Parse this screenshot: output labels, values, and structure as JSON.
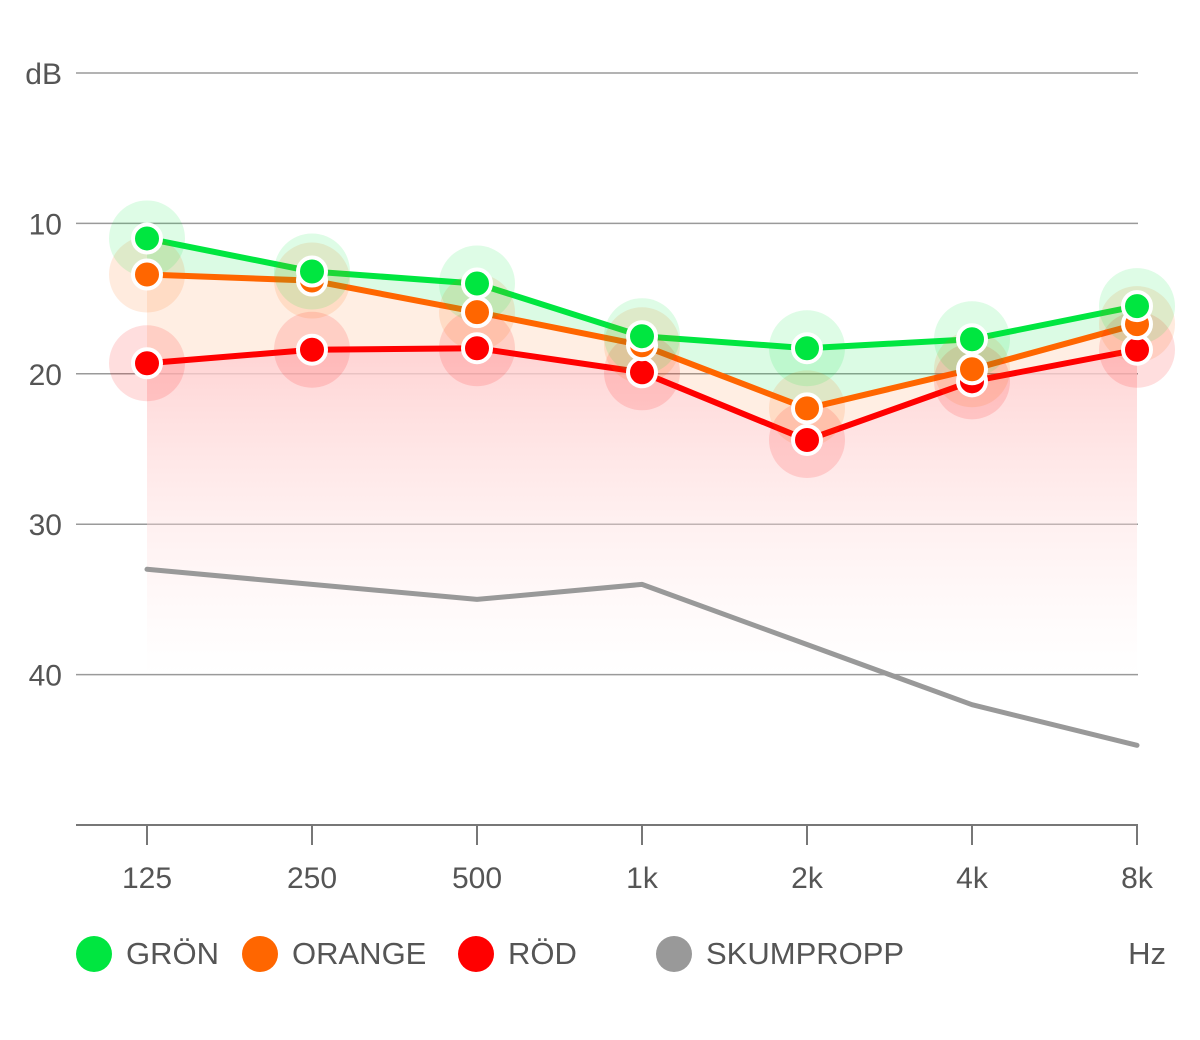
{
  "chart_data": {
    "type": "line",
    "title": "",
    "ylabel": "dB",
    "xlabel": "Hz",
    "ylim": [
      0,
      50
    ],
    "y_inverted": true,
    "y_ticks": [
      "",
      "10",
      "20",
      "30",
      "40"
    ],
    "categories": [
      "125",
      "250",
      "500",
      "1k",
      "2k",
      "4k",
      "8k"
    ],
    "grid": true,
    "series": [
      {
        "name": "SKUMPROPP",
        "color": "#999999",
        "markers": false,
        "values": [
          33,
          34,
          35,
          34,
          38,
          42,
          44.7
        ]
      },
      {
        "name": "RÖD",
        "color": "#ff0000",
        "markers": true,
        "values": [
          19.3,
          18.4,
          18.3,
          19.9,
          24.4,
          20.5,
          18.4
        ]
      },
      {
        "name": "ORANGE",
        "color": "#ff6600",
        "markers": true,
        "values": [
          13.4,
          13.8,
          15.9,
          18.1,
          22.3,
          19.7,
          16.7
        ]
      },
      {
        "name": "GRÖN",
        "color": "#00e640",
        "markers": true,
        "values": [
          11,
          13.2,
          14,
          17.5,
          18.3,
          17.7,
          15.5
        ]
      }
    ],
    "legend": [
      {
        "name": "GRÖN",
        "color": "#00e640"
      },
      {
        "name": "ORANGE",
        "color": "#ff6600"
      },
      {
        "name": "RÖD",
        "color": "#ff0000"
      },
      {
        "name": "SKUMPROPP",
        "color": "#999999"
      }
    ],
    "unit_label": "Hz"
  }
}
